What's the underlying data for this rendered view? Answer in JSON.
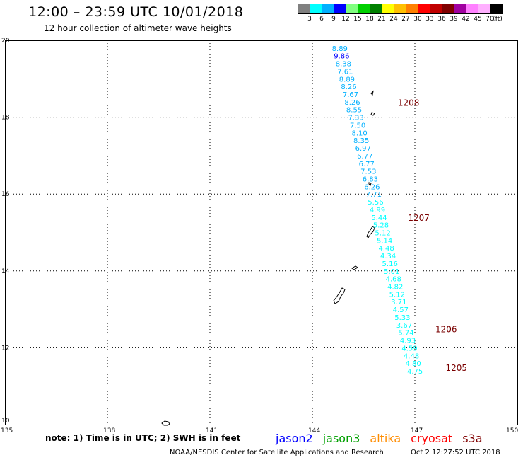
{
  "header": {
    "title": "12:00 – 23:59 UTC 10/01/2018",
    "subtitle": "12 hour collection of altimeter wave heights"
  },
  "legend": {
    "colors": [
      "#808080",
      "#00ffff",
      "#00b0ff",
      "#0000ff",
      "#80ff80",
      "#00d000",
      "#008000",
      "#ffff00",
      "#ffc000",
      "#ff8000",
      "#ff0000",
      "#c00000",
      "#800000",
      "#a000a0",
      "#ff80ff",
      "#ffb0ff",
      "#000000"
    ],
    "labels": [
      "3",
      "6",
      "9",
      "12",
      "15",
      "18",
      "21",
      "24",
      "27",
      "30",
      "33",
      "36",
      "39",
      "42",
      "45",
      "70",
      "(ft)"
    ]
  },
  "map": {
    "lon_ticks": [
      "135",
      "138",
      "141",
      "144",
      "147",
      "150"
    ],
    "lat_ticks": [
      "20",
      "18",
      "16",
      "14",
      "12",
      "10"
    ],
    "readings": [
      {
        "lat": 19.8,
        "val": "8.89"
      },
      {
        "lat": 19.6,
        "val": "9.86"
      },
      {
        "lat": 19.4,
        "val": "8.38"
      },
      {
        "lat": 19.2,
        "val": "7.61"
      },
      {
        "lat": 19.0,
        "val": "8.89"
      },
      {
        "lat": 18.8,
        "val": "8.26"
      },
      {
        "lat": 18.6,
        "val": "7.67"
      },
      {
        "lat": 18.4,
        "val": "8.26"
      },
      {
        "lat": 18.2,
        "val": "8.55"
      },
      {
        "lat": 18.0,
        "val": "7.33"
      },
      {
        "lat": 17.8,
        "val": "7.50"
      },
      {
        "lat": 17.6,
        "val": "8.10"
      },
      {
        "lat": 17.4,
        "val": "8.35"
      },
      {
        "lat": 17.2,
        "val": "6.97"
      },
      {
        "lat": 17.0,
        "val": "6.77"
      },
      {
        "lat": 16.8,
        "val": "6.77"
      },
      {
        "lat": 16.6,
        "val": "7.53"
      },
      {
        "lat": 16.4,
        "val": "6.83"
      },
      {
        "lat": 16.2,
        "val": "6.26"
      },
      {
        "lat": 16.0,
        "val": "7.71"
      },
      {
        "lat": 15.8,
        "val": "5.56"
      },
      {
        "lat": 15.6,
        "val": "4.99"
      },
      {
        "lat": 15.4,
        "val": "5.44"
      },
      {
        "lat": 15.2,
        "val": "5.28"
      },
      {
        "lat": 15.0,
        "val": "5.12"
      },
      {
        "lat": 14.8,
        "val": "5.14"
      },
      {
        "lat": 14.6,
        "val": "4.48"
      },
      {
        "lat": 14.4,
        "val": "4.34"
      },
      {
        "lat": 14.2,
        "val": "5.16"
      },
      {
        "lat": 14.0,
        "val": "5.01"
      },
      {
        "lat": 13.8,
        "val": "4.68"
      },
      {
        "lat": 13.6,
        "val": "4.82"
      },
      {
        "lat": 13.4,
        "val": "5.12"
      },
      {
        "lat": 13.2,
        "val": "3.71"
      },
      {
        "lat": 13.0,
        "val": "4.57"
      },
      {
        "lat": 12.8,
        "val": "5.33"
      },
      {
        "lat": 12.6,
        "val": "3.67"
      },
      {
        "lat": 12.4,
        "val": "5.74"
      },
      {
        "lat": 12.2,
        "val": "4.93"
      },
      {
        "lat": 12.0,
        "val": "4.59"
      },
      {
        "lat": 11.8,
        "val": "4.48"
      },
      {
        "lat": 11.6,
        "val": "4.80"
      },
      {
        "lat": 11.4,
        "val": "4.75"
      }
    ],
    "track_labels": [
      {
        "text": "1208",
        "lon": 146.5,
        "lat": 18.3
      },
      {
        "text": "1207",
        "lon": 146.8,
        "lat": 15.3
      },
      {
        "text": "1206",
        "lon": 147.6,
        "lat": 12.4
      },
      {
        "text": "1205",
        "lon": 147.9,
        "lat": 11.4
      }
    ]
  },
  "footer": {
    "note": "note:  1) Time is in UTC;  2) SWH is in feet",
    "satellites": [
      {
        "name": "jason2",
        "color": "#0000ff"
      },
      {
        "name": "jason3",
        "color": "#00a000"
      },
      {
        "name": "altika",
        "color": "#ff8c00"
      },
      {
        "name": "cryosat",
        "color": "#ff0000"
      },
      {
        "name": "s3a",
        "color": "#800000"
      }
    ],
    "credit": "NOAA/NESDIS Center for Satellite Applications and Research",
    "timestamp": "Oct  2 12:27:52 UTC 2018"
  }
}
